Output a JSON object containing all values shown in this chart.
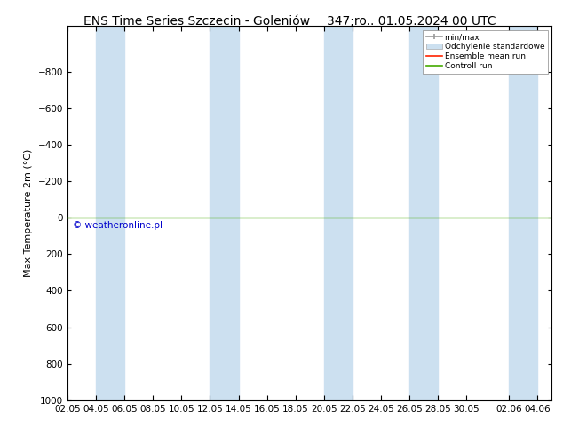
{
  "title_left": "ENS Time Series Szczecin - Goleniów",
  "title_right": "347;ro.. 01.05.2024 00 UTC",
  "ylabel": "Max Temperature 2m (°C)",
  "ylim_bottom": 1000,
  "ylim_top": -1050,
  "yticks": [
    -800,
    -600,
    -400,
    -200,
    0,
    200,
    400,
    600,
    800,
    1000
  ],
  "xlim_start": 0,
  "xlim_end": 34,
  "xtick_labels": [
    "02.05",
    "04.05",
    "06.05",
    "08.05",
    "10.05",
    "12.05",
    "14.05",
    "16.05",
    "18.05",
    "20.05",
    "22.05",
    "24.05",
    "26.05",
    "28.05",
    "30.05",
    "02.06",
    "04.06"
  ],
  "xtick_positions": [
    0,
    2,
    4,
    6,
    8,
    10,
    12,
    14,
    16,
    18,
    20,
    22,
    24,
    26,
    28,
    31,
    33
  ],
  "blue_bands": [
    [
      2,
      4
    ],
    [
      10,
      12
    ],
    [
      18,
      20
    ],
    [
      24,
      26
    ],
    [
      31,
      33
    ]
  ],
  "band_color": "#cce0f0",
  "green_line_y": 0,
  "green_line_color": "#44aa00",
  "red_line_color": "#ff2200",
  "watermark": "© weatheronline.pl",
  "watermark_color": "#0000cc",
  "background_color": "#ffffff",
  "legend_items": [
    "min/max",
    "Odchylenie standardowe",
    "Ensemble mean run",
    "Controll run"
  ],
  "legend_colors": [
    "#999999",
    "#bbccdd",
    "#ff2200",
    "#44aa00"
  ],
  "title_fontsize": 10,
  "axis_fontsize": 8,
  "tick_fontsize": 7.5
}
